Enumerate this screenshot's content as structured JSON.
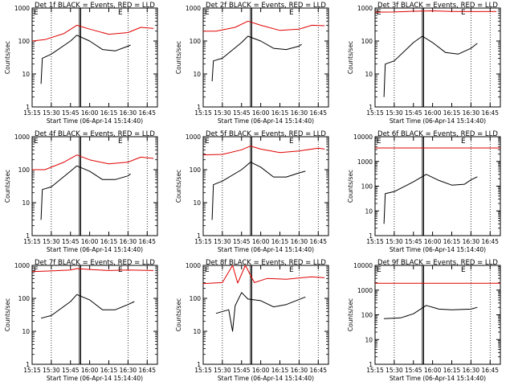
{
  "figure": {
    "time_labels": [
      "15:15",
      "15:30",
      "15:45",
      "16:00",
      "16:15",
      "16:30",
      "16:45"
    ],
    "start_time_label": "Start Time (06-Apr-14 15:14:40)",
    "ylabel": "Counts/sec",
    "marker_E": "E",
    "colors": {
      "events": "#000000",
      "lld": "#e00000",
      "axes": "#000000"
    }
  },
  "chart_data": [
    {
      "type": "line",
      "title": "Det 1f BLACK = Events, RED = LLD",
      "yscale": "log",
      "ylim": [
        1,
        1000
      ],
      "yticks": [
        "1",
        "10",
        "100",
        "1000"
      ],
      "xlim": [
        "15:15",
        "16:53"
      ],
      "series": [
        {
          "name": "Events",
          "color": "#000000",
          "points": [
            [
              "15:22",
              5
            ],
            [
              "15:23",
              30
            ],
            [
              "15:30",
              40
            ],
            [
              "15:45",
              100
            ],
            [
              "15:50",
              150
            ],
            [
              "16:00",
              100
            ],
            [
              "16:10",
              55
            ],
            [
              "16:20",
              50
            ],
            [
              "16:30",
              70
            ],
            [
              "16:32",
              75
            ]
          ]
        },
        {
          "name": "LLD",
          "color": "#e00000",
          "points": [
            [
              "15:15",
              100
            ],
            [
              "15:25",
              110
            ],
            [
              "15:40",
              170
            ],
            [
              "15:50",
              300
            ],
            [
              "16:00",
              230
            ],
            [
              "16:15",
              160
            ],
            [
              "16:30",
              180
            ],
            [
              "16:40",
              260
            ],
            [
              "16:50",
              240
            ]
          ]
        }
      ]
    },
    {
      "type": "line",
      "title": "Det 2f BLACK = Events, RED = LLD",
      "yscale": "log",
      "ylim": [
        1,
        1000
      ],
      "yticks": [
        "1",
        "10",
        "100",
        "1000"
      ],
      "xlim": [
        "15:15",
        "16:53"
      ],
      "series": [
        {
          "name": "Events",
          "color": "#000000",
          "points": [
            [
              "15:22",
              6
            ],
            [
              "15:23",
              25
            ],
            [
              "15:30",
              30
            ],
            [
              "15:45",
              90
            ],
            [
              "15:50",
              140
            ],
            [
              "16:00",
              100
            ],
            [
              "16:10",
              60
            ],
            [
              "16:20",
              55
            ],
            [
              "16:30",
              70
            ],
            [
              "16:32",
              80
            ]
          ]
        },
        {
          "name": "LLD",
          "color": "#e00000",
          "points": [
            [
              "15:15",
              200
            ],
            [
              "15:25",
              200
            ],
            [
              "15:40",
              260
            ],
            [
              "15:50",
              400
            ],
            [
              "16:00",
              300
            ],
            [
              "16:15",
              210
            ],
            [
              "16:30",
              230
            ],
            [
              "16:40",
              300
            ],
            [
              "16:50",
              290
            ]
          ]
        }
      ]
    },
    {
      "type": "line",
      "title": "Det 3f BLACK = Events, RED = LLD",
      "yscale": "log",
      "ylim": [
        1,
        1000
      ],
      "yticks": [
        "1",
        "10",
        "100",
        "1000"
      ],
      "xlim": [
        "15:15",
        "16:53"
      ],
      "series": [
        {
          "name": "Events",
          "color": "#000000",
          "points": [
            [
              "15:22",
              2
            ],
            [
              "15:23",
              20
            ],
            [
              "15:30",
              25
            ],
            [
              "15:45",
              90
            ],
            [
              "15:52",
              140
            ],
            [
              "16:00",
              90
            ],
            [
              "16:10",
              45
            ],
            [
              "16:20",
              40
            ],
            [
              "16:30",
              60
            ],
            [
              "16:35",
              85
            ]
          ]
        },
        {
          "name": "LLD",
          "color": "#e00000",
          "points": [
            [
              "15:15",
              750
            ],
            [
              "15:30",
              760
            ],
            [
              "15:45",
              800
            ],
            [
              "16:00",
              820
            ],
            [
              "16:15",
              790
            ],
            [
              "16:30",
              780
            ],
            [
              "16:50",
              790
            ]
          ]
        }
      ]
    },
    {
      "type": "line",
      "title": "Det 4f BLACK = Events, RED = LLD",
      "yscale": "log",
      "ylim": [
        1,
        1000
      ],
      "yticks": [
        "1",
        "10",
        "100",
        "1000"
      ],
      "xlim": [
        "15:15",
        "16:53"
      ],
      "series": [
        {
          "name": "Events",
          "color": "#000000",
          "points": [
            [
              "15:22",
              3
            ],
            [
              "15:23",
              25
            ],
            [
              "15:30",
              30
            ],
            [
              "15:45",
              90
            ],
            [
              "15:50",
              130
            ],
            [
              "16:00",
              90
            ],
            [
              "16:10",
              50
            ],
            [
              "16:20",
              50
            ],
            [
              "16:30",
              65
            ],
            [
              "16:32",
              75
            ]
          ]
        },
        {
          "name": "LLD",
          "color": "#e00000",
          "points": [
            [
              "15:15",
              100
            ],
            [
              "15:25",
              100
            ],
            [
              "15:40",
              170
            ],
            [
              "15:50",
              280
            ],
            [
              "16:00",
              200
            ],
            [
              "16:15",
              150
            ],
            [
              "16:30",
              170
            ],
            [
              "16:40",
              240
            ],
            [
              "16:50",
              220
            ]
          ]
        }
      ]
    },
    {
      "type": "line",
      "title": "Det 5f BLACK = Events, RED = LLD",
      "yscale": "log",
      "ylim": [
        1,
        1000
      ],
      "yticks": [
        "1",
        "10",
        "100",
        "1000"
      ],
      "xlim": [
        "15:15",
        "16:53"
      ],
      "series": [
        {
          "name": "Events",
          "color": "#000000",
          "points": [
            [
              "15:22",
              3
            ],
            [
              "15:23",
              35
            ],
            [
              "15:30",
              45
            ],
            [
              "15:45",
              100
            ],
            [
              "15:52",
              170
            ],
            [
              "16:00",
              120
            ],
            [
              "16:10",
              60
            ],
            [
              "16:20",
              60
            ],
            [
              "16:30",
              80
            ],
            [
              "16:35",
              90
            ]
          ]
        },
        {
          "name": "LLD",
          "color": "#e00000",
          "points": [
            [
              "15:15",
              280
            ],
            [
              "15:30",
              290
            ],
            [
              "15:45",
              400
            ],
            [
              "15:52",
              520
            ],
            [
              "16:00",
              420
            ],
            [
              "16:15",
              330
            ],
            [
              "16:30",
              370
            ],
            [
              "16:45",
              450
            ],
            [
              "16:50",
              420
            ]
          ]
        }
      ]
    },
    {
      "type": "line",
      "title": "Det 6f BLACK = Events, RED = LLD",
      "yscale": "log",
      "ylim": [
        1,
        10000
      ],
      "yticks": [
        "1",
        "10",
        "100",
        "1000",
        "10000"
      ],
      "xlim": [
        "15:15",
        "16:53"
      ],
      "series": [
        {
          "name": "Events",
          "color": "#000000",
          "points": [
            [
              "15:22",
              3
            ],
            [
              "15:23",
              50
            ],
            [
              "15:30",
              60
            ],
            [
              "15:45",
              150
            ],
            [
              "15:55",
              300
            ],
            [
              "16:05",
              170
            ],
            [
              "16:15",
              110
            ],
            [
              "16:25",
              120
            ],
            [
              "16:30",
              180
            ],
            [
              "16:35",
              240
            ]
          ]
        },
        {
          "name": "LLD",
          "color": "#e00000",
          "points": [
            [
              "15:15",
              3500
            ],
            [
              "16:53",
              3500
            ]
          ]
        }
      ]
    },
    {
      "type": "line",
      "title": "Det 7f BLACK = Events, RED = LLD",
      "yscale": "log",
      "ylim": [
        1,
        1000
      ],
      "yticks": [
        "1",
        "10",
        "100",
        "1000"
      ],
      "xlim": [
        "15:15",
        "16:53"
      ],
      "series": [
        {
          "name": "Events",
          "color": "#000000",
          "points": [
            [
              "15:22",
              25
            ],
            [
              "15:30",
              30
            ],
            [
              "15:45",
              80
            ],
            [
              "15:50",
              130
            ],
            [
              "16:00",
              90
            ],
            [
              "16:10",
              45
            ],
            [
              "16:20",
              45
            ],
            [
              "16:30",
              65
            ],
            [
              "16:35",
              80
            ]
          ]
        },
        {
          "name": "LLD",
          "color": "#e00000",
          "points": [
            [
              "15:15",
              650
            ],
            [
              "15:30",
              680
            ],
            [
              "15:45",
              720
            ],
            [
              "15:50",
              800
            ],
            [
              "16:00",
              750
            ],
            [
              "16:15",
              700
            ],
            [
              "16:30",
              720
            ],
            [
              "16:50",
              700
            ]
          ]
        }
      ]
    },
    {
      "type": "line",
      "title": "Det 8f BLACK = Events, RED = LLD",
      "yscale": "log",
      "ylim": [
        1,
        1000
      ],
      "yticks": [
        "1",
        "10",
        "100",
        "1000"
      ],
      "xlim": [
        "15:15",
        "16:53"
      ],
      "series": [
        {
          "name": "Events",
          "color": "#000000",
          "points": [
            [
              "15:25",
              35
            ],
            [
              "15:35",
              45
            ],
            [
              "15:38",
              10
            ],
            [
              "15:40",
              60
            ],
            [
              "15:45",
              150
            ],
            [
              "15:50",
              95
            ],
            [
              "16:00",
              85
            ],
            [
              "16:10",
              55
            ],
            [
              "16:20",
              65
            ],
            [
              "16:35",
              110
            ]
          ]
        },
        {
          "name": "LLD",
          "color": "#e00000",
          "points": [
            [
              "15:15",
              280
            ],
            [
              "15:30",
              300
            ],
            [
              "15:38",
              1000
            ],
            [
              "15:42",
              290
            ],
            [
              "15:48",
              1000
            ],
            [
              "15:55",
              300
            ],
            [
              "16:05",
              400
            ],
            [
              "16:20",
              380
            ],
            [
              "16:40",
              450
            ],
            [
              "16:50",
              420
            ]
          ]
        }
      ]
    },
    {
      "type": "line",
      "title": "Det 9f BLACK = Events, RED = LLD",
      "yscale": "log",
      "ylim": [
        1,
        10000
      ],
      "yticks": [
        "1",
        "10",
        "100",
        "1000",
        "10000"
      ],
      "xlim": [
        "15:15",
        "16:53"
      ],
      "series": [
        {
          "name": "Events",
          "color": "#000000",
          "points": [
            [
              "15:22",
              70
            ],
            [
              "15:35",
              75
            ],
            [
              "15:45",
              110
            ],
            [
              "15:55",
              240
            ],
            [
              "16:05",
              170
            ],
            [
              "16:15",
              160
            ],
            [
              "16:30",
              170
            ],
            [
              "16:35",
              200
            ]
          ]
        },
        {
          "name": "LLD",
          "color": "#e00000",
          "points": [
            [
              "15:15",
              1900
            ],
            [
              "16:53",
              1900
            ]
          ]
        }
      ]
    }
  ]
}
